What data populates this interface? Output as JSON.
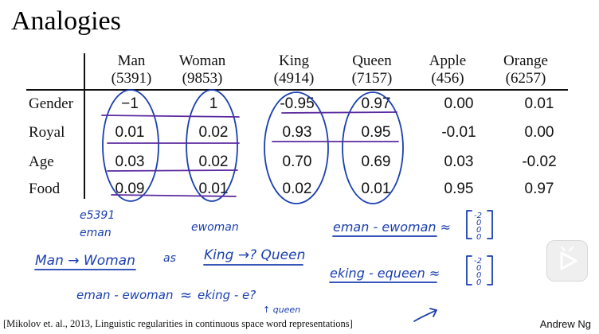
{
  "title": "Analogies",
  "columns": [
    {
      "word": "Man",
      "index": "(5391)"
    },
    {
      "word": "Woman",
      "index": "(9853)"
    },
    {
      "word": "King",
      "index": "(4914)"
    },
    {
      "word": "Queen",
      "index": "(7157)"
    },
    {
      "word": "Apple",
      "index": "(456)"
    },
    {
      "word": "Orange",
      "index": "(6257)"
    }
  ],
  "rows": [
    {
      "feature": "Gender",
      "values": [
        "−1",
        "1",
        "-0.95",
        "0.97",
        "0.00",
        "0.01"
      ]
    },
    {
      "feature": "Royal",
      "values": [
        "0.01",
        "0.02",
        "0.93",
        "0.95",
        "-0.01",
        "0.00"
      ]
    },
    {
      "feature": "Age",
      "values": [
        "0.03",
        "0.02",
        "0.70",
        "0.69",
        "0.03",
        "-0.02"
      ]
    },
    {
      "feature": "Food",
      "values": [
        "0.09",
        "0.01",
        "0.02",
        "0.01",
        "0.95",
        "0.97"
      ]
    }
  ],
  "handwriting": {
    "e5391": "e5391",
    "eman": "eman",
    "ewoman": "ewoman",
    "man_woman": "Man → Woman",
    "as": "as",
    "king_queen": "King →? Queen",
    "diff_left": "eman - ewoman",
    "approx": "≈",
    "eking_e": "eking - e?",
    "queen_arrow": "↑ queen",
    "rhs1": "eman - ewoman ≈",
    "rhs2": "eking - equeen ≈",
    "vec1": [
      "-2",
      "0",
      "0",
      "0"
    ],
    "vec2": [
      "-2",
      "0",
      "0",
      "0"
    ]
  },
  "ink_color": "#1a3fb0",
  "underline_color": "#5a2aa0",
  "citation": "[Mikolov et. al., 2013, Linguistic regularities in continuous space word representations]",
  "author": "Andrew Ng",
  "icons": {
    "play": "play-icon"
  }
}
